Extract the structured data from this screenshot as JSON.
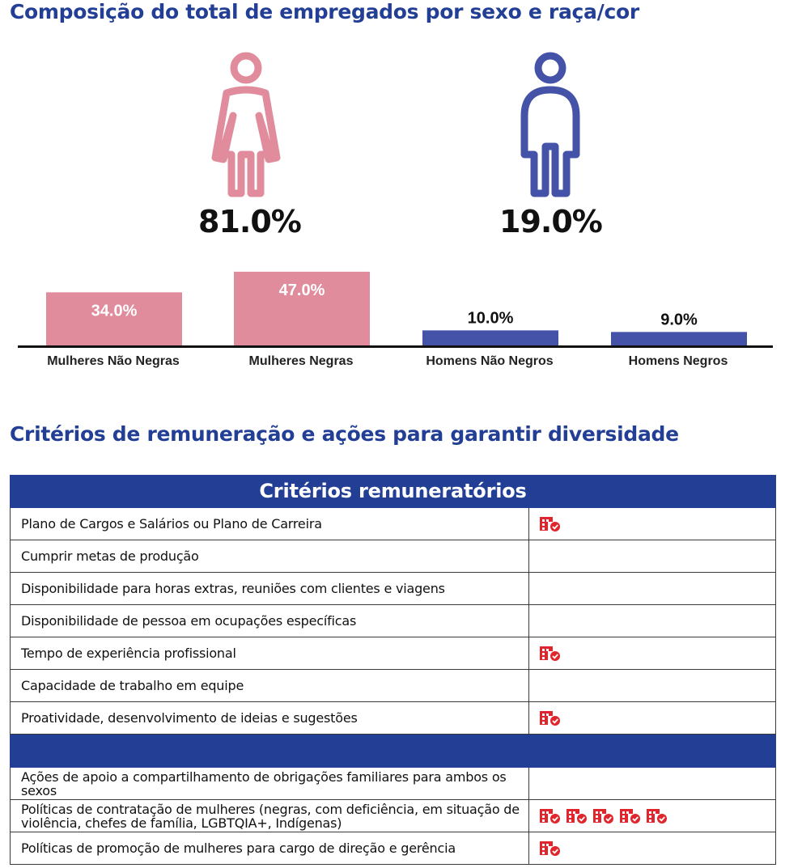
{
  "titles": {
    "composition": "Composição do total de empregados por sexo e raça/cor",
    "criteria": "Critérios de remuneração e ações para garantir diversidade"
  },
  "figures": {
    "women_pct": "81.0%",
    "men_pct": "19.0%",
    "women_icon": "woman-icon",
    "men_icon": "man-icon",
    "women_color": "#e08c9c",
    "men_color": "#4453a8"
  },
  "chart_data": {
    "type": "bar",
    "categories": [
      "Mulheres Não Negras",
      "Mulheres Negras",
      "Homens Não Negros",
      "Homens Negros"
    ],
    "values": [
      34.0,
      47.0,
      10.0,
      9.0
    ],
    "value_labels": [
      "34.0%",
      "47.0%",
      "10.0%",
      "9.0%"
    ],
    "colors": [
      "#e08c9c",
      "#e08c9c",
      "#4453a8",
      "#4453a8"
    ],
    "ylim": [
      0,
      50
    ]
  },
  "table": {
    "header": "Critérios remuneratórios",
    "rows": [
      {
        "label": "Plano de Cargos e Salários ou Plano de Carreira",
        "icons": 1
      },
      {
        "label": "Cumprir metas de produção",
        "icons": 0
      },
      {
        "label": "Disponibilidade para horas extras, reuniões com clientes e viagens",
        "icons": 0
      },
      {
        "label": "Disponibilidade de pessoa em ocupações específicas",
        "icons": 0
      },
      {
        "label": "Tempo de experiência profissional",
        "icons": 1
      },
      {
        "label": "Capacidade de trabalho em equipe",
        "icons": 0
      },
      {
        "label": "Proatividade, desenvolvimento de ideias e sugestões",
        "icons": 1
      }
    ],
    "actions": [
      {
        "label": "Ações de apoio a compartilhamento de obrigações familiares para ambos os sexos",
        "icons": 0
      },
      {
        "label": "Políticas de contratação de mulheres (negras, com deficiência, em situação de violência, chefes de família, LGBTQIA+, Indígenas)",
        "icons": 5
      },
      {
        "label": "Políticas de promoção de mulheres para cargo de direção e gerência",
        "icons": 1
      }
    ],
    "icon_name": "company-check-icon",
    "icon_color": "#e0262c"
  }
}
